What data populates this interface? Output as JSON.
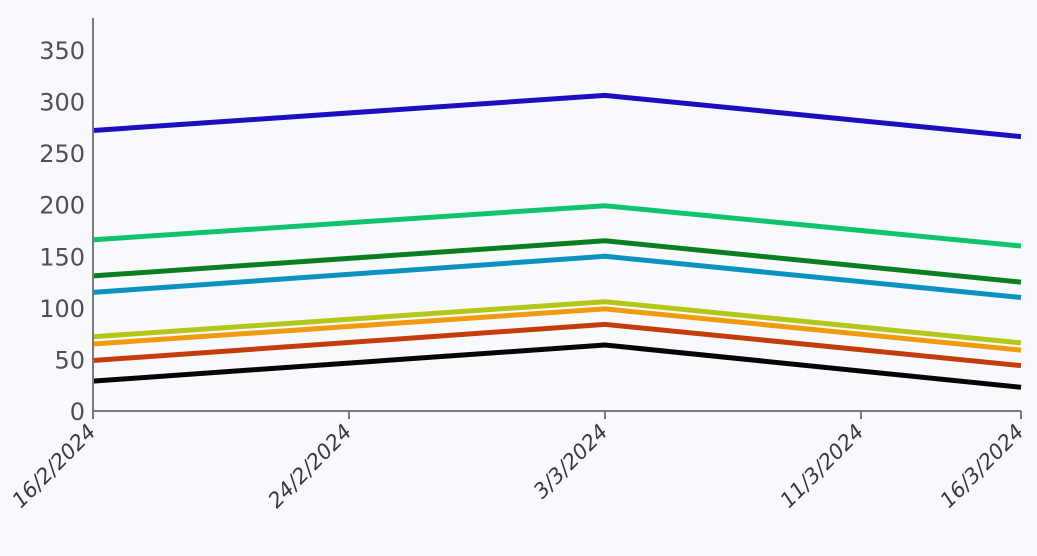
{
  "chart_data": {
    "type": "line",
    "x": [
      "16/2/2024",
      "3/3/2024",
      "16/3/2024"
    ],
    "x_ticks": [
      "16/2/2024",
      "24/2/2024",
      "3/3/2024",
      "11/3/2024",
      "16/3/2024"
    ],
    "ylim": [
      0,
      350
    ],
    "y_ticks": [
      0,
      50,
      100,
      150,
      200,
      250,
      300,
      350
    ],
    "grid": false,
    "title": "",
    "xlabel": "",
    "ylabel": "",
    "series": [
      {
        "color": "#1a10c0",
        "values": [
          272,
          306,
          266
        ]
      },
      {
        "color": "#0fc46c",
        "values": [
          166,
          199,
          160
        ]
      },
      {
        "color": "#0b7f1f",
        "values": [
          131,
          165,
          125
        ]
      },
      {
        "color": "#0a93c1",
        "values": [
          115,
          150,
          110
        ]
      },
      {
        "color": "#b4c617",
        "values": [
          72,
          106,
          66
        ]
      },
      {
        "color": "#f29a0e",
        "values": [
          65,
          99,
          59
        ]
      },
      {
        "color": "#c43c0a",
        "values": [
          49,
          84,
          44
        ]
      },
      {
        "color": "#050505",
        "values": [
          29,
          64,
          23
        ]
      }
    ]
  }
}
